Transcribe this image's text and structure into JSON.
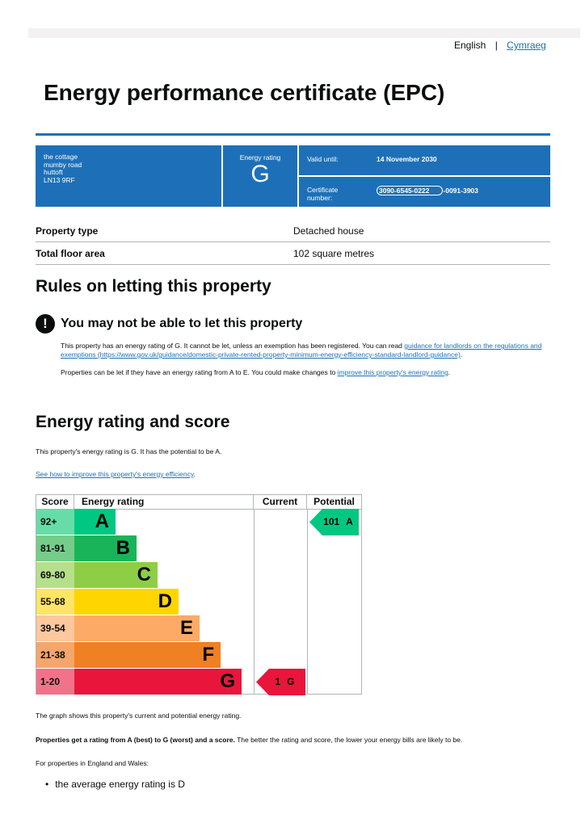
{
  "language": {
    "english": "English",
    "welsh": "Cymraeg"
  },
  "header": {
    "title": "Energy performance certificate (EPC)"
  },
  "summary": {
    "address": [
      "the cottage",
      "mumby road",
      "huttoft",
      "LN13 9RF"
    ],
    "rating_label": "Energy rating",
    "rating": "G",
    "valid_label": "Valid until:",
    "valid_until": "14 November 2030",
    "certificate_label": "Certificate number:",
    "certificate_number": [
      "3090-6545-0222",
      "-0091-3903"
    ]
  },
  "property": {
    "rows": [
      [
        "Property type",
        "Detached house"
      ],
      [
        "Total floor area",
        "102 square metres"
      ]
    ]
  },
  "letting": {
    "heading": "Rules on letting this property",
    "warning": "You may not be able to let this property",
    "paragraph1": [
      "This property has an energy rating of G. It cannot be let, unless an exemption has been registered. You can read ",
      "guidance for landlords on the regulations and exemptions (https://www.gov.uk/guidance/domestic-private-rented-property-minimum-energy-efficiency-standard-landlord-guidance)",
      "."
    ],
    "paragraph2": [
      "Properties can be let if they have an energy rating from A to E. You could make changes to ",
      "improve this property's energy rating",
      "."
    ]
  },
  "rating_section": {
    "heading": "Energy rating and score",
    "summary": "This property's energy rating is G. It has the potential to be A.",
    "link": "See how to improve this property's energy efficiency",
    "link_end": ".",
    "table": {
      "headers": [
        "Score",
        "Energy rating",
        "Current",
        "Potential"
      ],
      "bands": [
        {
          "score": "92+",
          "letter": "A"
        },
        {
          "score": "81-91",
          "letter": "B"
        },
        {
          "score": "69-80",
          "letter": "C"
        },
        {
          "score": "55-68",
          "letter": "D"
        },
        {
          "score": "39-54",
          "letter": "E"
        },
        {
          "score": "21-38",
          "letter": "F"
        },
        {
          "score": "1-20",
          "letter": "G"
        }
      ],
      "current": {
        "score": "1",
        "letter": "G"
      },
      "potential": {
        "score": "101",
        "letter": "A"
      }
    },
    "note1": "The graph shows this property's current and potential energy rating.",
    "note2": [
      "Properties get a rating from A (best) to G (worst) and a score.",
      " The better the rating and score, the lower your energy bills are likely to be."
    ],
    "note3": "For properties in England and Wales:",
    "bullet": "the average energy rating is D"
  }
}
